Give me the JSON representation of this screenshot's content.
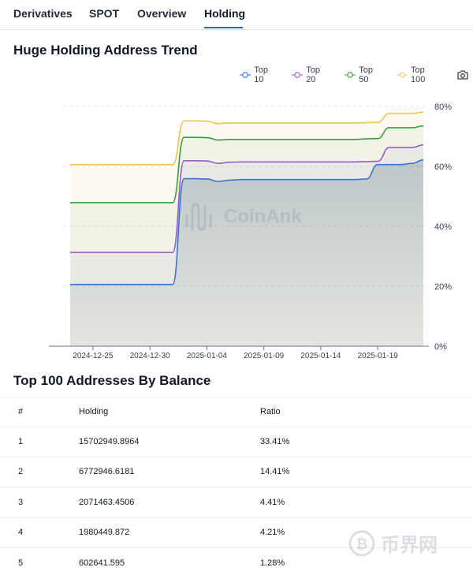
{
  "tabs": [
    {
      "label": "Derivatives",
      "active": false
    },
    {
      "label": "SPOT",
      "active": false
    },
    {
      "label": "Overview",
      "active": false
    },
    {
      "label": "Holding",
      "active": true
    }
  ],
  "trend": {
    "title": "Huge Holding Address Trend",
    "watermark": "CoinAnk"
  },
  "colors": {
    "accent": "#2563eb",
    "top10": "#3b73d6",
    "top20": "#9b59d0",
    "top50": "#3a9b45",
    "top100": "#ecc550"
  },
  "icons": {
    "camera": "camera-icon"
  },
  "chart_data": {
    "type": "area",
    "x_ticks": [
      "2024-12-25",
      "2024-12-30",
      "2025-01-04",
      "2025-01-09",
      "2025-01-14",
      "2025-01-19"
    ],
    "x": [
      "2024-12-23",
      "2024-12-24",
      "2024-12-25",
      "2024-12-26",
      "2024-12-27",
      "2024-12-28",
      "2024-12-29",
      "2024-12-30",
      "2024-12-31",
      "2025-01-01",
      "2025-01-02",
      "2025-01-03",
      "2025-01-04",
      "2025-01-05",
      "2025-01-06",
      "2025-01-07",
      "2025-01-08",
      "2025-01-09",
      "2025-01-10",
      "2025-01-11",
      "2025-01-12",
      "2025-01-13",
      "2025-01-14",
      "2025-01-15",
      "2025-01-16",
      "2025-01-17",
      "2025-01-18",
      "2025-01-19",
      "2025-01-20",
      "2025-01-21",
      "2025-01-22",
      "2025-01-23"
    ],
    "series": [
      {
        "name": "Top 10",
        "values": [
          20.6,
          20.6,
          20.6,
          20.6,
          20.6,
          20.6,
          20.6,
          20.6,
          20.6,
          20.6,
          55.9,
          55.9,
          55.8,
          55.0,
          55.4,
          55.6,
          55.6,
          55.6,
          55.6,
          55.6,
          55.6,
          55.6,
          55.6,
          55.6,
          55.6,
          55.6,
          55.8,
          60.6,
          60.6,
          60.6,
          61.0,
          62.2
        ]
      },
      {
        "name": "Top 20",
        "values": [
          31.3,
          31.3,
          31.3,
          31.3,
          31.3,
          31.3,
          31.3,
          31.3,
          31.3,
          31.3,
          61.9,
          61.9,
          61.8,
          61.0,
          61.4,
          61.5,
          61.5,
          61.5,
          61.5,
          61.5,
          61.5,
          61.5,
          61.5,
          61.5,
          61.5,
          61.5,
          61.6,
          61.7,
          66.3,
          66.3,
          66.3,
          67.2
        ]
      },
      {
        "name": "Top 50",
        "values": [
          47.9,
          47.9,
          47.9,
          47.9,
          47.9,
          47.9,
          47.9,
          47.9,
          47.9,
          47.9,
          69.7,
          69.7,
          69.6,
          68.8,
          69.0,
          69.0,
          69.0,
          69.0,
          69.0,
          69.0,
          69.0,
          69.0,
          69.0,
          69.0,
          69.0,
          69.0,
          69.2,
          69.3,
          72.9,
          72.9,
          72.9,
          73.5
        ]
      },
      {
        "name": "Top 100",
        "values": [
          60.6,
          60.6,
          60.6,
          60.6,
          60.6,
          60.6,
          60.6,
          60.6,
          60.6,
          60.6,
          75.2,
          75.2,
          75.1,
          74.3,
          74.5,
          74.5,
          74.5,
          74.5,
          74.5,
          74.5,
          74.5,
          74.5,
          74.5,
          74.5,
          74.5,
          74.5,
          74.6,
          74.7,
          77.7,
          77.7,
          77.7,
          78.1
        ]
      }
    ],
    "ylim": [
      0,
      80
    ],
    "y_ticks": [
      "0%",
      "20%",
      "40%",
      "60%",
      "80%"
    ],
    "legend_position": "top-right",
    "grid": true
  },
  "table": {
    "title": "Top 100 Addresses By Balance",
    "headers": [
      "#",
      "Holding",
      "Ratio"
    ],
    "rows": [
      [
        "1",
        "15702949.8964",
        "33.41%"
      ],
      [
        "2",
        "6772946.6181",
        "14.41%"
      ],
      [
        "3",
        "2071463.4506",
        "4.41%"
      ],
      [
        "4",
        "1980449.872",
        "4.21%"
      ],
      [
        "5",
        "602641.595",
        "1.28%"
      ]
    ]
  },
  "bottom_watermark": "币界网"
}
